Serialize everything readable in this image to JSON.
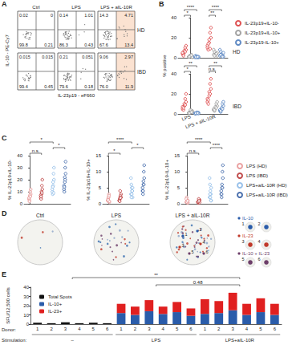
{
  "chart_data": [
    {
      "panel": "A",
      "type": "flow",
      "x_label": "IL-23p19 - eF660",
      "y_label": "IL-10 - PE-Cy7",
      "columns": [
        "Ctrl",
        "LPS",
        "LPS + aIL-10R"
      ],
      "rows": [
        {
          "name": "HD",
          "quadrants": [
            {
              "ul": 0.02,
              "ur": 0,
              "ll": 99.8,
              "lr": 0.21
            },
            {
              "ul": 0.14,
              "ur": 1.01,
              "ll": 86.3,
              "lr": 0.43
            },
            {
              "ul": 14.3,
              "ur": 4.71,
              "ll": 67.6,
              "lr": 13.4
            }
          ]
        },
        {
          "name": "IBD",
          "quadrants": [
            {
              "ul": 0.015,
              "ur": 0.015,
              "ll": 99.4,
              "lr": 0.45
            },
            {
              "ul": 0.21,
              "ur": 0.051,
              "ll": 79.6,
              "lr": 0.18
            },
            {
              "ul": 9.06,
              "ur": 2.97,
              "ll": {
                "value": 76,
                "label": "76.0"
              },
              "lr": 11.9
            }
          ]
        }
      ]
    },
    {
      "panel": "B",
      "type": "scatter",
      "y_label": "% positive",
      "legend": "right",
      "categories": [
        "LPS",
        "LPS + aIL-10R"
      ],
      "plots": [
        {
          "name": "HD",
          "ylim": [
            0,
            40
          ],
          "yticks": [
            0,
            20,
            40
          ],
          "series": [
            {
              "name": "IL-23p19+IL-10-",
              "color": "#d62728",
              "marker": "circle",
              "values": [
                [
                  4,
                  6,
                  8,
                  3,
                  10,
                  5,
                  7,
                  12,
                  2,
                  6
                ],
                [
                  10,
                  15,
                  20,
                  8,
                  25,
                  12,
                  18,
                  30,
                  14,
                  9
                ]
              ]
            },
            {
              "name": "IL-23p19+IL-10+",
              "color": "#8c8c8c",
              "marker": "circle",
              "values": [
                [
                  1,
                  2,
                  0.5,
                  1.5,
                  3,
                  1,
                  2,
                  0.8,
                  1.2,
                  2.5
                ],
                [
                  3,
                  5,
                  2,
                  6,
                  4,
                  8,
                  3,
                  5,
                  2,
                  4
                ]
              ]
            },
            {
              "name": "IL-23p19-IL-10+",
              "color": "#3b6fb6",
              "marker": "circle",
              "values": [
                [
                  0.5,
                  1,
                  0.3,
                  2,
                  0.8,
                  1.5,
                  0.4,
                  1,
                  0.6,
                  0.9
                ],
                [
                  2,
                  4,
                  1,
                  6,
                  3,
                  8,
                  2,
                  5,
                  3,
                  1
                ]
              ]
            }
          ],
          "significance": [
            {
              "category": "LPS",
              "between": [
                "IL-23p19+IL-10-",
                "IL-23p19+IL-10+"
              ],
              "label": "*"
            },
            {
              "category": "LPS",
              "between": [
                "IL-23p19+IL-10-",
                "IL-23p19-IL-10+"
              ],
              "label": "****"
            },
            {
              "category": "LPS + aIL-10R",
              "between": [
                "IL-23p19+IL-10-",
                "IL-23p19+IL-10+"
              ],
              "label": "**"
            },
            {
              "category": "LPS + aIL-10R",
              "between": [
                "IL-23p19+IL-10-",
                "IL-23p19-IL-10+"
              ],
              "label": "****"
            }
          ]
        },
        {
          "name": "IBD",
          "ylim": [
            0,
            40
          ],
          "yticks": [
            0,
            20,
            40
          ],
          "series": [
            {
              "name": "IL-23p19+IL-10-",
              "color": "#d62728",
              "marker": "circle",
              "values": [
                [
                  5,
                  8,
                  12,
                  4,
                  15,
                  7,
                  10,
                  20,
                  6,
                  9
                ],
                [
                  12,
                  18,
                  25,
                  10,
                  30,
                  15,
                  22,
                  35,
                  14,
                  20
                ]
              ]
            },
            {
              "name": "IL-23p19+IL-10+",
              "color": "#8c8c8c",
              "marker": "circle",
              "values": [
                [
                  1,
                  2,
                  3,
                  1.5,
                  2.5,
                  1,
                  4,
                  2,
                  0.8,
                  1.8
                ],
                [
                  4,
                  6,
                  8,
                  3,
                  10,
                  5,
                  7,
                  12,
                  4,
                  6
                ]
              ]
            },
            {
              "name": "IL-23p19-IL-10+",
              "color": "#3b6fb6",
              "marker": "circle",
              "values": [
                [
                  0.5,
                  0.8,
                  1.2,
                  0.3,
                  1,
                  0.6,
                  1.5,
                  0.4,
                  0.7,
                  0.9
                ],
                [
                  3,
                  5,
                  8,
                  2,
                  10,
                  4,
                  6,
                  12,
                  3,
                  5
                ]
              ]
            }
          ],
          "significance": [
            {
              "category": "LPS",
              "between": [
                "IL-23p19+IL-10-",
                "IL-23p19+IL-10+"
              ],
              "label": "*"
            },
            {
              "category": "LPS",
              "between": [
                "IL-23p19+IL-10-",
                "IL-23p19-IL-10+"
              ],
              "label": "**"
            },
            {
              "category": "LPS + aIL-10R",
              "between": [
                "IL-23p19+IL-10-",
                "IL-23p19+IL-10+"
              ],
              "label": "n.s."
            },
            {
              "category": "LPS + aIL-10R",
              "between": [
                "IL-23p19+IL-10-",
                "IL-23p19-IL-10+"
              ],
              "label": "**"
            }
          ]
        }
      ]
    },
    {
      "panel": "C",
      "type": "scatter",
      "legend": "right",
      "groups": [
        {
          "name": "LPS (HD)",
          "color": "#e58a8a",
          "marker": "circle"
        },
        {
          "name": "LPS (IBD)",
          "color": "#b22222",
          "marker": "circle"
        },
        {
          "name": "LPS+aIL-10R (HD)",
          "color": "#7fb2e5",
          "marker": "circle"
        },
        {
          "name": "LPS+aIL-10R (IBD)",
          "color": "#1f4e9a",
          "marker": "circle"
        }
      ],
      "plots": [
        {
          "y_label": "% IL-23p19+IL-10-",
          "ylim": [
            0,
            40
          ],
          "yticks": [
            0,
            10,
            20,
            30,
            40
          ],
          "values": [
            [
              4,
              6,
              8,
              3,
              10,
              5,
              7,
              12,
              2,
              6
            ],
            [
              5,
              8,
              12,
              4,
              15,
              7,
              10,
              20,
              6,
              9
            ],
            [
              10,
              15,
              20,
              8,
              25,
              12,
              18,
              30,
              14,
              9
            ],
            [
              12,
              18,
              25,
              10,
              30,
              15,
              22,
              35,
              14,
              20
            ]
          ],
          "significance": [
            {
              "between": [
                "LPS (HD)",
                "LPS (IBD)"
              ],
              "label": "n.s."
            },
            {
              "between": [
                "LPS+aIL-10R (HD)",
                "LPS+aIL-10R (IBD)"
              ],
              "label": "*"
            },
            {
              "between": [
                "LPS (HD)",
                "LPS+aIL-10R (HD)"
              ],
              "label": "*"
            }
          ]
        },
        {
          "y_label": "% IL-23p19+IL-10+",
          "ylim": [
            0,
            15
          ],
          "yticks": [
            0,
            5,
            10,
            15
          ],
          "values": [
            [
              1,
              2,
              0.5,
              1.5,
              3,
              1,
              2,
              0.8,
              1.2,
              2.5
            ],
            [
              1,
              2,
              3,
              1.5,
              2.5,
              1,
              4,
              2,
              0.8,
              1.8
            ],
            [
              3,
              5,
              2,
              6,
              4,
              8,
              3,
              5,
              2,
              4
            ],
            [
              4,
              6,
              8,
              3,
              10,
              5,
              7,
              12,
              4,
              6
            ]
          ],
          "significance": [
            {
              "between": [
                "LPS (HD)",
                "LPS (IBD)"
              ],
              "label": "*"
            },
            {
              "between": [
                "LPS+aIL-10R (HD)",
                "LPS+aIL-10R (IBD)"
              ],
              "label": "*"
            },
            {
              "between": [
                "LPS (HD)",
                "LPS+aIL-10R (HD)"
              ],
              "label": "****"
            }
          ]
        },
        {
          "y_label": "% IL-23p19-IL-10+",
          "ylim": [
            0,
            15
          ],
          "yticks": [
            0,
            5,
            10,
            15
          ],
          "values": [
            [
              0.5,
              1,
              0.3,
              2,
              0.8,
              1.5,
              0.4,
              1,
              0.6,
              0.9
            ],
            [
              0.5,
              0.8,
              1.2,
              0.3,
              1,
              0.6,
              1.5,
              0.4,
              0.7,
              0.9
            ],
            [
              2,
              4,
              1,
              6,
              3,
              8,
              2,
              5,
              3,
              1
            ],
            [
              3,
              5,
              8,
              2,
              10,
              4,
              6,
              12,
              3,
              5
            ]
          ],
          "significance": [
            {
              "between": [
                "LPS (HD)",
                "LPS (IBD)"
              ],
              "label": "n.s."
            },
            {
              "between": [
                "LPS+aIL-10R (HD)",
                "LPS+aIL-10R (IBD)"
              ],
              "label": "****"
            },
            {
              "between": [
                "LPS (HD)",
                "LPS+aIL-10R (HD)"
              ],
              "label": "****"
            }
          ]
        }
      ]
    },
    {
      "panel": "D",
      "type": "elispot",
      "wells": [
        "Ctrl",
        "LPS",
        "LPS + aIL-10R"
      ],
      "numbered_well": "LPS + aIL-10R",
      "insets": [
        {
          "label": "IL-10",
          "color": "#2a5caa",
          "spots": [
            1,
            2
          ]
        },
        {
          "label": "IL-23",
          "color": "#c0392b",
          "spots": [
            3,
            4
          ]
        },
        {
          "label": "IL-10 + IL-23",
          "color": "#6d3f6a",
          "spots": [
            5,
            6
          ]
        }
      ]
    },
    {
      "panel": "E",
      "type": "bar",
      "stacked": true,
      "legend": "upper left",
      "y_label": "SFU/12,500 cells",
      "x_label": "Donor:",
      "group_label": "Stimulation:",
      "ylim": [
        0,
        40
      ],
      "yticks": [
        0,
        10,
        20,
        30,
        40
      ],
      "categories": [
        "1",
        "2",
        "3",
        "4",
        "5",
        "6",
        "1",
        "2",
        "3",
        "4",
        "5",
        "6",
        "1",
        "2",
        "3",
        "4",
        "5",
        "6"
      ],
      "stimulation": [
        "–",
        "–",
        "–",
        "–",
        "–",
        "–",
        "LPS",
        "LPS",
        "LPS",
        "LPS",
        "LPS",
        "LPS",
        "LPS+aIL-10R",
        "LPS+aIL-10R",
        "LPS+aIL-10R",
        "LPS+aIL-10R",
        "LPS+aIL-10R",
        "LPS+aIL-10R"
      ],
      "series": [
        {
          "name": "Total Spots",
          "color": "#111111",
          "values": [
            1.5,
            1,
            2,
            1,
            1.5,
            1,
            null,
            null,
            null,
            null,
            null,
            null,
            null,
            null,
            null,
            null,
            null,
            null
          ]
        },
        {
          "name": "IL-10+",
          "color": "#2a5caa",
          "values": [
            null,
            null,
            null,
            null,
            null,
            null,
            12,
            10,
            14,
            11,
            13,
            9,
            11,
            12,
            15,
            10,
            13,
            10
          ]
        },
        {
          "name": "IL-23+",
          "color": "#e02020",
          "values": [
            null,
            null,
            null,
            null,
            null,
            null,
            10,
            9,
            12,
            8,
            11,
            8,
            16,
            13,
            19,
            12,
            15,
            12
          ]
        }
      ],
      "annotations": [
        {
          "between": [
            "LPS",
            "LPS+aIL-10R"
          ],
          "label": "0.48"
        },
        {
          "between": [
            "–",
            "LPS+aIL-10R"
          ],
          "label": "**"
        }
      ]
    }
  ]
}
